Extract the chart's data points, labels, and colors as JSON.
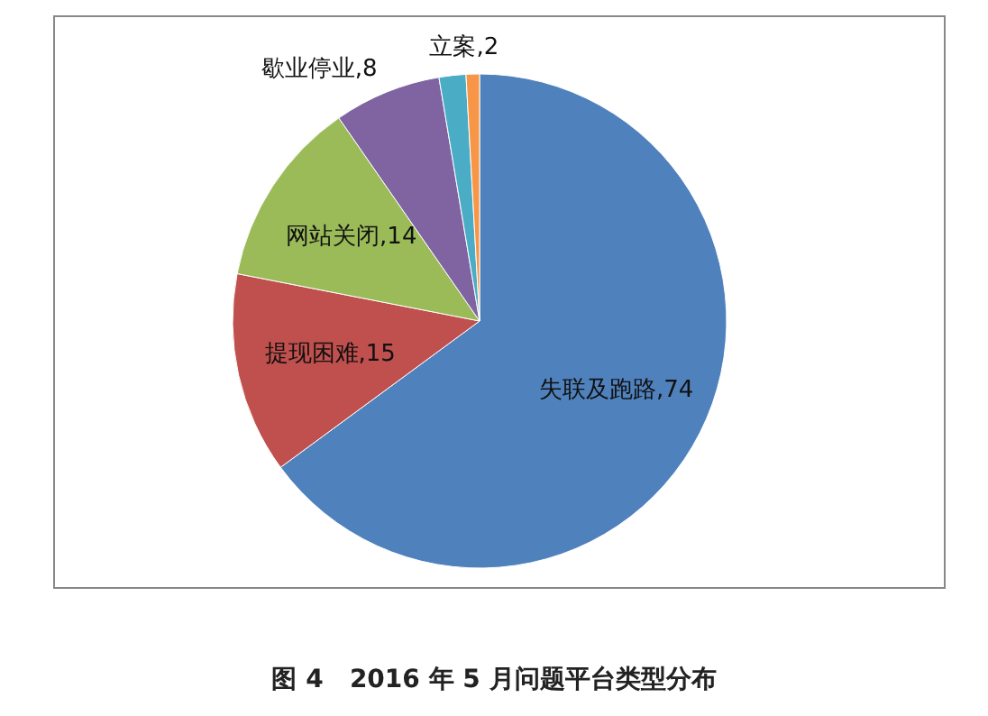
{
  "chart_data": {
    "type": "pie",
    "title": "图 4   2016 年 5 月问题平台类型分布",
    "categories": [
      "失联及跑路",
      "提现困难",
      "网站关闭",
      "歇业停业",
      "立案",
      null
    ],
    "values": [
      74,
      15,
      14,
      8,
      2,
      1
    ],
    "colors": [
      "#4f81bd",
      "#c0504d",
      "#9bbb59",
      "#8064a2",
      "#4bacc6",
      "#f79646"
    ],
    "value_labels": [
      "74",
      "15",
      "14",
      "8",
      "2",
      null
    ],
    "legend": false
  }
}
